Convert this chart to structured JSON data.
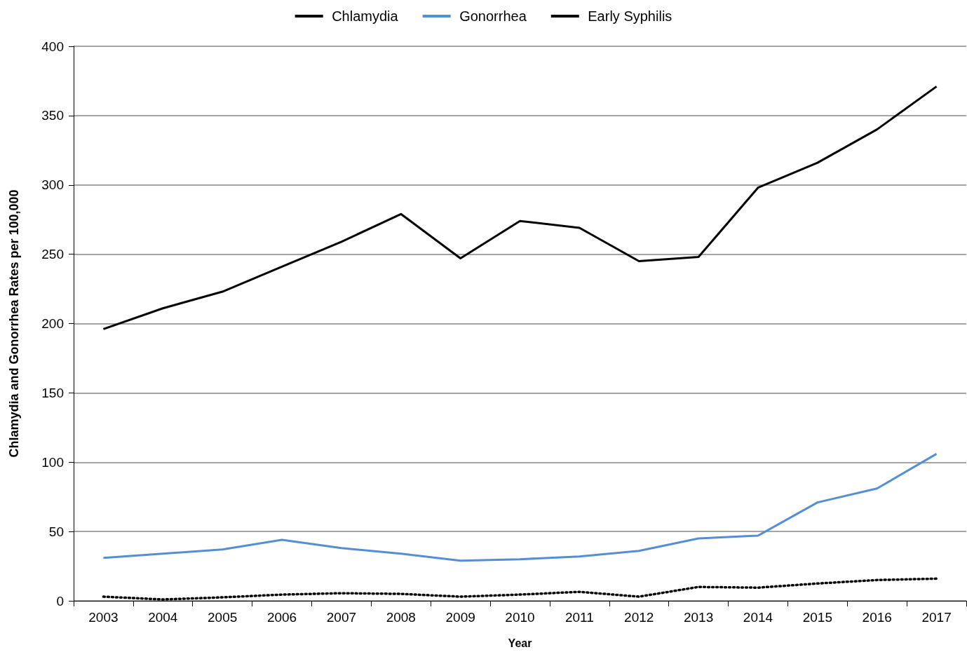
{
  "chart_data": {
    "type": "line",
    "xlabel": "Year",
    "ylabel": "Chlamydia and Gonorrhea Rates per 100,000",
    "categories": [
      "2003",
      "2004",
      "2005",
      "2006",
      "2007",
      "2008",
      "2009",
      "2010",
      "2011",
      "2012",
      "2013",
      "2014",
      "2015",
      "2016",
      "2017"
    ],
    "series": [
      {
        "name": "Chlamydia",
        "color": "#000000",
        "line_style": "solid",
        "values": [
          196,
          211,
          223,
          241,
          259,
          279,
          247,
          274,
          269,
          245,
          248,
          298,
          316,
          340,
          371
        ]
      },
      {
        "name": "Gonorrhea",
        "color": "#558ed5",
        "line_style": "solid",
        "values": [
          31,
          34,
          37,
          44,
          38,
          34,
          29,
          30,
          32,
          36,
          45,
          47,
          71,
          81,
          106
        ]
      },
      {
        "name": "Early Syphilis",
        "color": "#000000",
        "line_style": "dotted",
        "values": [
          3,
          1,
          2.5,
          4.5,
          5.5,
          5,
          3,
          4.5,
          6.5,
          3,
          10,
          9.5,
          12.5,
          15,
          16
        ]
      }
    ],
    "ylim": [
      0,
      400
    ],
    "yticks": [
      0,
      50,
      100,
      150,
      200,
      250,
      300,
      350,
      400
    ],
    "grid": "y",
    "legend": "top",
    "marker": "none"
  }
}
